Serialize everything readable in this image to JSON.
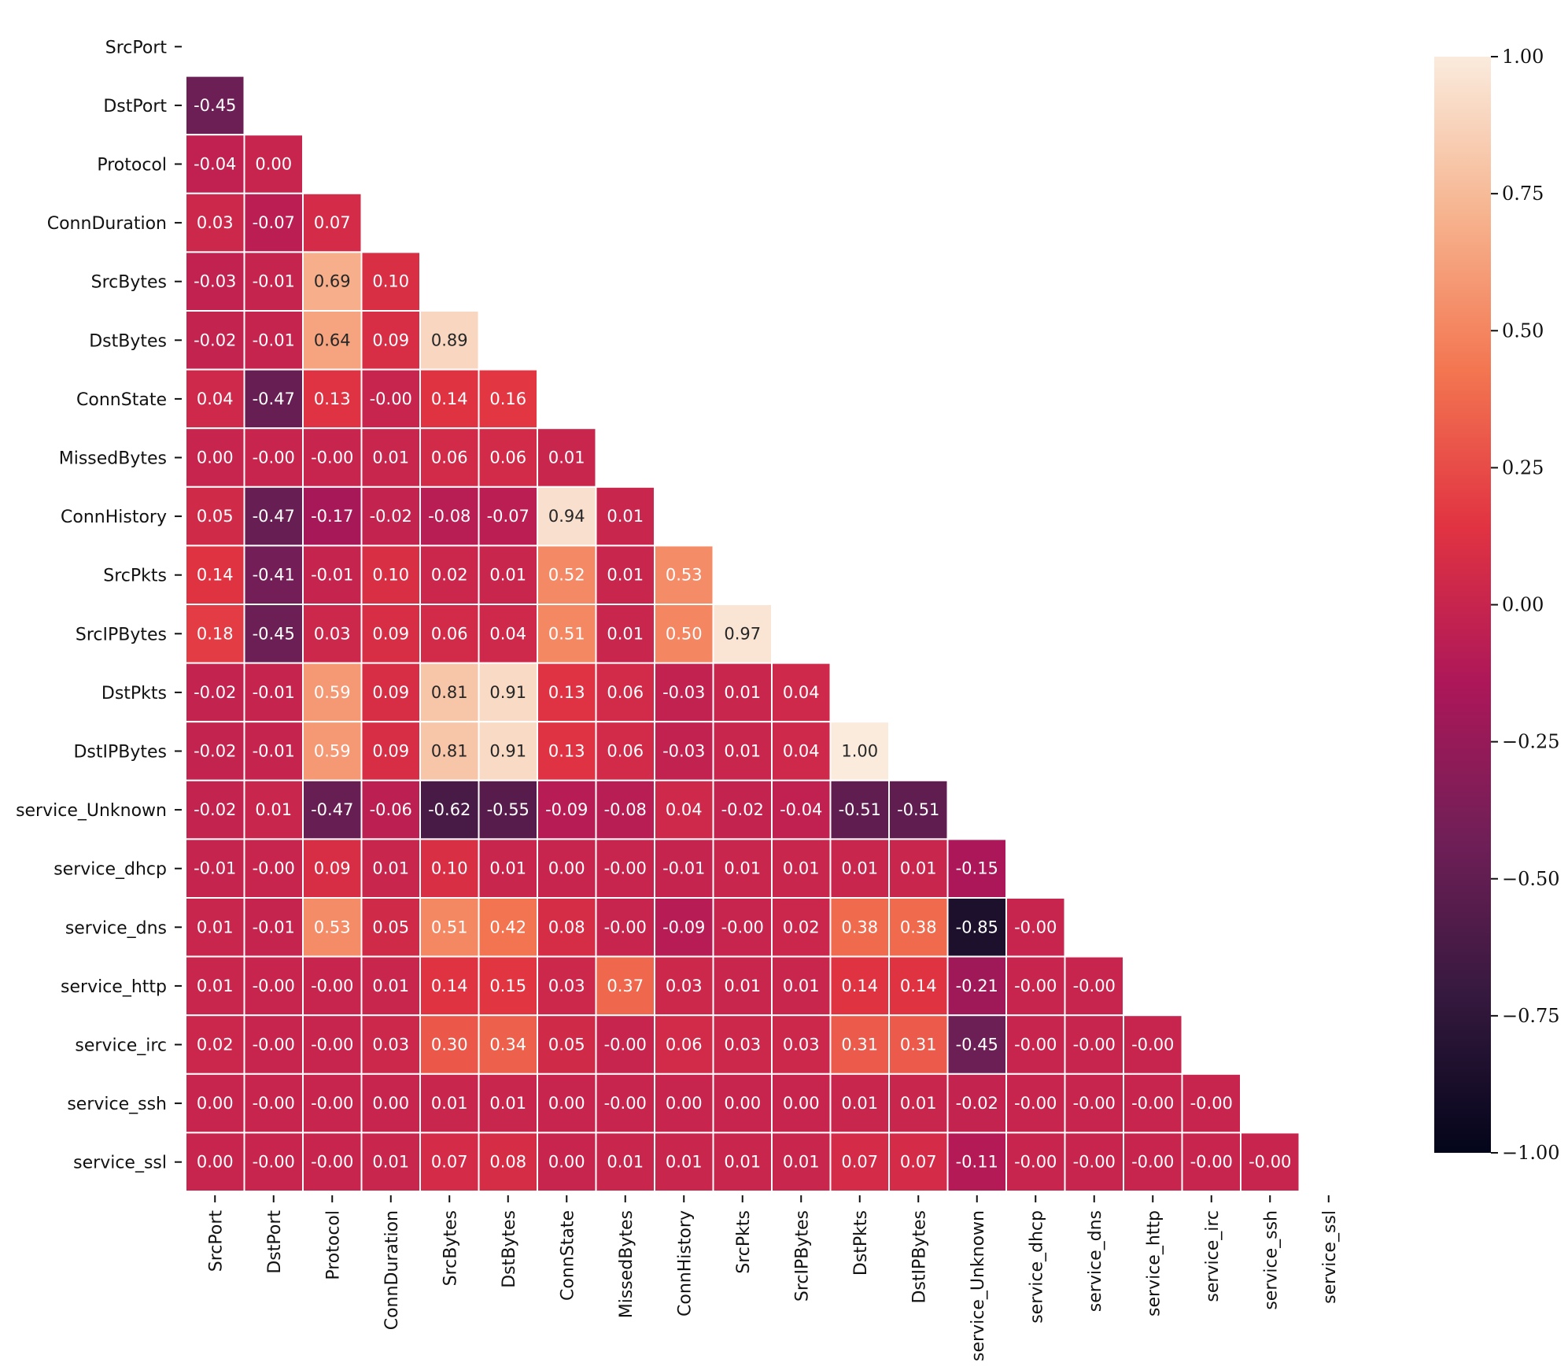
{
  "chart_data": {
    "type": "heatmap",
    "title": "",
    "xlabel": "",
    "ylabel": "",
    "variables": [
      "SrcPort",
      "DstPort",
      "Protocol",
      "ConnDuration",
      "SrcBytes",
      "DstBytes",
      "ConnState",
      "MissedBytes",
      "ConnHistory",
      "SrcPkts",
      "SrcIPBytes",
      "DstPkts",
      "DstIPBytes",
      "service_Unknown",
      "service_dhcp",
      "service_dns",
      "service_http",
      "service_irc",
      "service_ssh",
      "service_ssl"
    ],
    "mask": "upper triangle including diagonal",
    "values": [
      [],
      [
        -0.45
      ],
      [
        -0.04,
        0.0
      ],
      [
        0.03,
        -0.07,
        0.07
      ],
      [
        -0.03,
        -0.01,
        0.69,
        0.1
      ],
      [
        -0.02,
        -0.01,
        0.64,
        0.09,
        0.89
      ],
      [
        0.04,
        -0.47,
        0.13,
        -0.0,
        0.14,
        0.16
      ],
      [
        0.0,
        -0.0,
        -0.0,
        0.01,
        0.06,
        0.06,
        0.01
      ],
      [
        0.05,
        -0.47,
        -0.17,
        -0.02,
        -0.08,
        -0.07,
        0.94,
        0.01
      ],
      [
        0.14,
        -0.41,
        -0.01,
        0.1,
        0.02,
        0.01,
        0.52,
        0.01,
        0.53
      ],
      [
        0.18,
        -0.45,
        0.03,
        0.09,
        0.06,
        0.04,
        0.51,
        0.01,
        0.5,
        0.97
      ],
      [
        -0.02,
        -0.01,
        0.59,
        0.09,
        0.81,
        0.91,
        0.13,
        0.06,
        -0.03,
        0.01,
        0.04
      ],
      [
        -0.02,
        -0.01,
        0.59,
        0.09,
        0.81,
        0.91,
        0.13,
        0.06,
        -0.03,
        0.01,
        0.04,
        1.0
      ],
      [
        -0.02,
        0.01,
        -0.47,
        -0.06,
        -0.62,
        -0.55,
        -0.09,
        -0.08,
        0.04,
        -0.02,
        -0.04,
        -0.51,
        -0.51
      ],
      [
        -0.01,
        -0.0,
        0.09,
        0.01,
        0.1,
        0.01,
        0.0,
        -0.0,
        -0.01,
        0.01,
        0.01,
        0.01,
        0.01,
        -0.15
      ],
      [
        0.01,
        -0.01,
        0.53,
        0.05,
        0.51,
        0.42,
        0.08,
        -0.0,
        -0.09,
        -0.0,
        0.02,
        0.38,
        0.38,
        -0.85,
        -0.0
      ],
      [
        0.01,
        -0.0,
        -0.0,
        0.01,
        0.14,
        0.15,
        0.03,
        0.37,
        0.03,
        0.01,
        0.01,
        0.14,
        0.14,
        -0.21,
        -0.0,
        -0.0
      ],
      [
        0.02,
        -0.0,
        -0.0,
        0.03,
        0.3,
        0.34,
        0.05,
        -0.0,
        0.06,
        0.03,
        0.03,
        0.31,
        0.31,
        -0.45,
        -0.0,
        -0.0,
        -0.0
      ],
      [
        0.0,
        -0.0,
        -0.0,
        0.0,
        0.01,
        0.01,
        0.0,
        -0.0,
        0.0,
        0.0,
        0.0,
        0.01,
        0.01,
        -0.02,
        -0.0,
        -0.0,
        -0.0,
        -0.0
      ],
      [
        0.0,
        -0.0,
        -0.0,
        0.01,
        0.07,
        0.08,
        0.0,
        0.01,
        0.01,
        0.01,
        0.01,
        0.07,
        0.07,
        -0.11,
        -0.0,
        -0.0,
        -0.0,
        -0.0,
        -0.0
      ]
    ],
    "annotation_format": "2 decimals",
    "colormap": "rocket",
    "colorbar": {
      "range": [
        -1.0,
        1.0
      ],
      "ticks": [
        -1.0,
        -0.75,
        -0.5,
        -0.25,
        0.0,
        0.25,
        0.5,
        0.75,
        1.0
      ],
      "tick_labels": [
        "−1.00",
        "−0.75",
        "−0.50",
        "−0.25",
        "0.00",
        "0.25",
        "0.50",
        "0.75",
        "1.00"
      ]
    }
  },
  "colors": {
    "background": "#ffffff",
    "cell_border": "#ffffff",
    "dark_text": "#262626",
    "light_text": "#ffffff",
    "colormap_stops": [
      "#03051a",
      "#35193e",
      "#701f57",
      "#ad1759",
      "#e13342",
      "#f37651",
      "#f6b48f",
      "#faebdd"
    ]
  }
}
